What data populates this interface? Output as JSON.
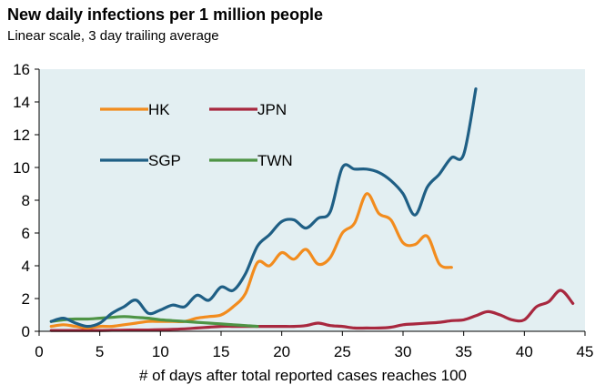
{
  "header": {
    "title": "New daily infections per 1 million people",
    "subtitle": "Linear scale, 3 day trailing average"
  },
  "chart_data": {
    "type": "line",
    "title": "New daily infections per 1 million people",
    "subtitle": "Linear scale, 3 day trailing average",
    "xlabel": "# of days after total reported cases reaches 100",
    "ylabel": "",
    "xlim": [
      0,
      45
    ],
    "ylim": [
      0,
      16
    ],
    "xticks": [
      0,
      5,
      10,
      15,
      20,
      25,
      30,
      35,
      40,
      45
    ],
    "yticks": [
      0,
      2,
      4,
      6,
      8,
      10,
      12,
      14,
      16
    ],
    "grid": false,
    "plot_background": "#e3eff2",
    "legend_position": "inside-top-left",
    "series": [
      {
        "name": "HK",
        "color": "#f28c1e",
        "x": [
          1,
          2,
          3,
          4,
          5,
          6,
          7,
          8,
          9,
          10,
          11,
          12,
          13,
          14,
          15,
          16,
          17,
          18,
          19,
          20,
          21,
          22,
          23,
          24,
          25,
          26,
          27,
          28,
          29,
          30,
          31,
          32,
          33,
          34
        ],
        "y": [
          0.3,
          0.4,
          0.3,
          0.2,
          0.3,
          0.3,
          0.4,
          0.5,
          0.6,
          0.6,
          0.6,
          0.6,
          0.8,
          0.9,
          1.0,
          1.5,
          2.3,
          4.2,
          4.0,
          4.8,
          4.4,
          5.0,
          4.1,
          4.5,
          6.0,
          6.6,
          8.4,
          7.2,
          6.8,
          5.4,
          5.3,
          5.8,
          4.1,
          3.9
        ]
      },
      {
        "name": "JPN",
        "color": "#a8283f",
        "x": [
          1,
          2,
          3,
          4,
          5,
          6,
          7,
          8,
          9,
          10,
          11,
          12,
          13,
          14,
          15,
          16,
          17,
          18,
          19,
          20,
          21,
          22,
          23,
          24,
          25,
          26,
          27,
          28,
          29,
          30,
          31,
          32,
          33,
          34,
          35,
          36,
          37,
          38,
          39,
          40,
          41,
          42,
          43,
          44
        ],
        "y": [
          0.05,
          0.05,
          0.05,
          0.05,
          0.05,
          0.06,
          0.07,
          0.08,
          0.08,
          0.1,
          0.12,
          0.15,
          0.2,
          0.25,
          0.3,
          0.3,
          0.3,
          0.3,
          0.3,
          0.3,
          0.3,
          0.35,
          0.5,
          0.35,
          0.3,
          0.2,
          0.2,
          0.2,
          0.25,
          0.4,
          0.45,
          0.5,
          0.55,
          0.65,
          0.7,
          0.95,
          1.2,
          1.0,
          0.7,
          0.7,
          1.5,
          1.8,
          2.5,
          1.7
        ]
      },
      {
        "name": "SGP",
        "color": "#1f5f85",
        "x": [
          1,
          2,
          3,
          4,
          5,
          6,
          7,
          8,
          9,
          10,
          11,
          12,
          13,
          14,
          15,
          16,
          17,
          18,
          19,
          20,
          21,
          22,
          23,
          24,
          25,
          26,
          27,
          28,
          29,
          30,
          31,
          32,
          33,
          34,
          35,
          36
        ],
        "y": [
          0.6,
          0.8,
          0.5,
          0.3,
          0.5,
          1.1,
          1.5,
          1.9,
          1.1,
          1.3,
          1.6,
          1.5,
          2.2,
          1.9,
          2.7,
          2.5,
          3.5,
          5.2,
          5.9,
          6.7,
          6.8,
          6.3,
          6.9,
          7.3,
          10.0,
          9.9,
          9.9,
          9.7,
          9.2,
          8.4,
          7.1,
          8.8,
          9.6,
          10.6,
          10.8,
          14.8
        ]
      },
      {
        "name": "TWN",
        "color": "#4e9445",
        "x": [
          1,
          2,
          3,
          4,
          5,
          6,
          7,
          8,
          9,
          10,
          11,
          12,
          13,
          14,
          15,
          16,
          17,
          18
        ],
        "y": [
          0.6,
          0.7,
          0.75,
          0.75,
          0.8,
          0.85,
          0.9,
          0.85,
          0.8,
          0.7,
          0.65,
          0.6,
          0.55,
          0.5,
          0.45,
          0.4,
          0.35,
          0.3
        ]
      }
    ]
  }
}
